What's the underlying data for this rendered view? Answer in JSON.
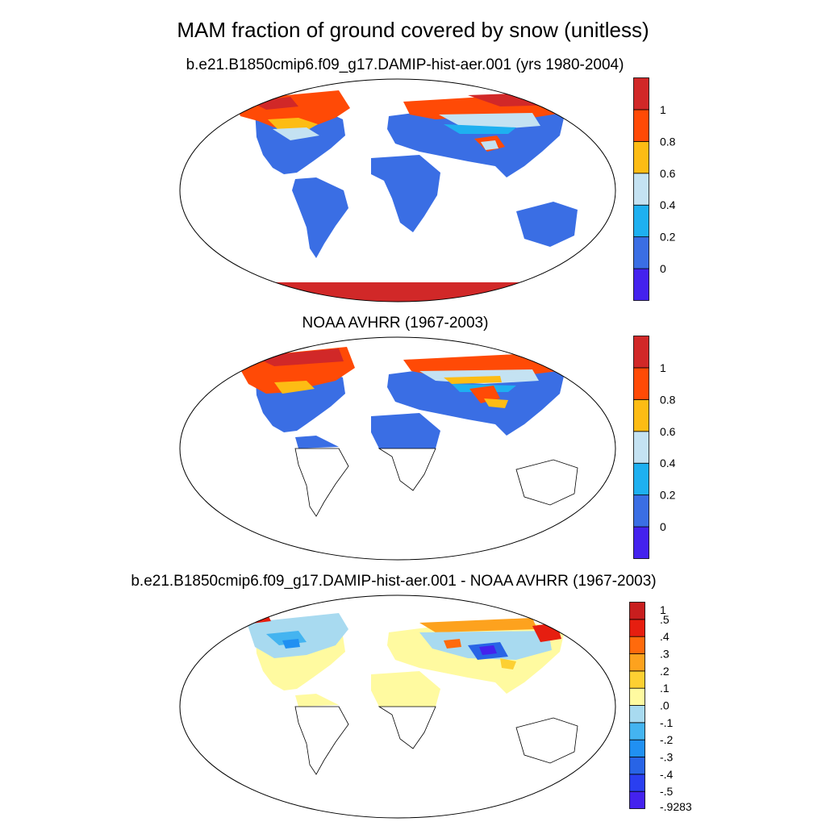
{
  "figure": {
    "title": "MAM fraction of ground covered by snow (unitless)"
  },
  "panels": [
    {
      "title": "b.e21.B1850cmip6.f09_g17.DAMIP-hist-aer.001 (yrs 1980-2004)",
      "colorbar": {
        "colors": [
          "#4422ee",
          "#3a6ee4",
          "#1eb0f0",
          "#c4e2f2",
          "#fdbc14",
          "#ff4a06",
          "#d12828"
        ],
        "labels": [
          "0",
          "0.2",
          "0.4",
          "0.6",
          "0.8",
          "1"
        ]
      }
    },
    {
      "title": "NOAA AVHRR (1967-2003)",
      "colorbar": {
        "colors": [
          "#4422ee",
          "#3a6ee4",
          "#1eb0f0",
          "#c4e2f2",
          "#fdbc14",
          "#ff4a06",
          "#d12828"
        ],
        "labels": [
          "0",
          "0.2",
          "0.4",
          "0.6",
          "0.8",
          "1"
        ]
      }
    },
    {
      "title": "b.e21.B1850cmip6.f09_g17.DAMIP-hist-aer.001 - NOAA AVHRR (1967-2003)",
      "colorbar": {
        "colors": [
          "#4422ee",
          "#2a3ff0",
          "#2864e6",
          "#2090f2",
          "#44b4f0",
          "#a8daf0",
          "#fffaa0",
          "#fdd032",
          "#fda21e",
          "#ff6a0c",
          "#e61e10",
          "#c81e1e"
        ],
        "labels": [
          "-.9283",
          "-.5",
          "-.4",
          "-.3",
          "-.2",
          "-.1",
          ".0",
          ".1",
          ".2",
          ".3",
          ".4",
          ".5",
          "1"
        ]
      }
    }
  ]
}
